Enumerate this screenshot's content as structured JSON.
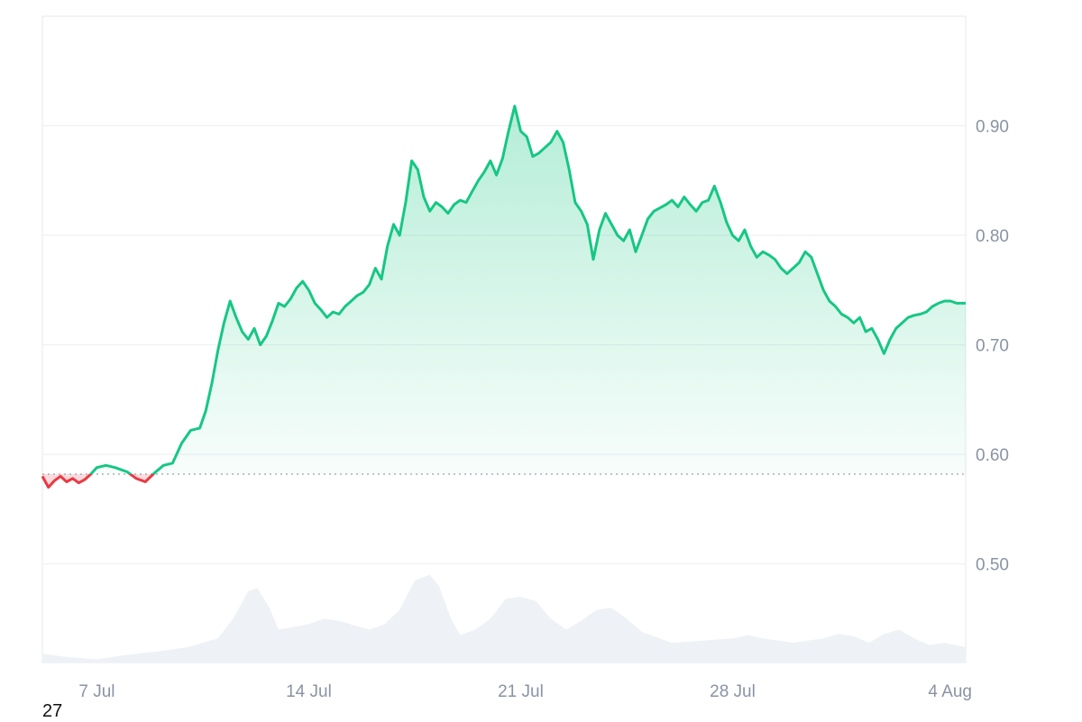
{
  "chart_data": {
    "type": "area",
    "title": "",
    "xlabel": "",
    "ylabel": "",
    "ylim": [
      0.41,
      1.0
    ],
    "y_ticks": [
      {
        "value": 0.9,
        "label": "0.90"
      },
      {
        "value": 0.8,
        "label": "0.80"
      },
      {
        "value": 0.7,
        "label": "0.70"
      },
      {
        "value": 0.6,
        "label": "0.60"
      },
      {
        "value": 0.5,
        "label": "0.50"
      }
    ],
    "x_ticks": [
      {
        "day": 7,
        "label": "7 Jul"
      },
      {
        "day": 14,
        "label": "14 Jul"
      },
      {
        "day": 21,
        "label": "21 Jul"
      },
      {
        "day": 28,
        "label": "28 Jul"
      },
      {
        "day": 35,
        "label": "4 Aug"
      }
    ],
    "x_range": [
      5.2,
      35.7
    ],
    "baseline": 0.582,
    "grid": true,
    "legend": "none",
    "colors": {
      "up": "#16c784",
      "down": "#ea3943",
      "volume": "#eef1f5"
    },
    "price": [
      [
        5.2,
        0.58
      ],
      [
        5.4,
        0.57
      ],
      [
        5.6,
        0.576
      ],
      [
        5.8,
        0.58
      ],
      [
        6.0,
        0.575
      ],
      [
        6.2,
        0.578
      ],
      [
        6.4,
        0.574
      ],
      [
        6.6,
        0.577
      ],
      [
        6.8,
        0.582
      ],
      [
        7.0,
        0.588
      ],
      [
        7.3,
        0.59
      ],
      [
        7.6,
        0.588
      ],
      [
        8.0,
        0.584
      ],
      [
        8.3,
        0.578
      ],
      [
        8.6,
        0.575
      ],
      [
        8.9,
        0.583
      ],
      [
        9.2,
        0.59
      ],
      [
        9.5,
        0.592
      ],
      [
        9.8,
        0.61
      ],
      [
        10.1,
        0.622
      ],
      [
        10.4,
        0.624
      ],
      [
        10.6,
        0.64
      ],
      [
        10.8,
        0.665
      ],
      [
        11.0,
        0.695
      ],
      [
        11.2,
        0.72
      ],
      [
        11.4,
        0.74
      ],
      [
        11.6,
        0.725
      ],
      [
        11.8,
        0.712
      ],
      [
        12.0,
        0.705
      ],
      [
        12.2,
        0.715
      ],
      [
        12.4,
        0.7
      ],
      [
        12.6,
        0.708
      ],
      [
        12.8,
        0.722
      ],
      [
        13.0,
        0.738
      ],
      [
        13.2,
        0.735
      ],
      [
        13.4,
        0.742
      ],
      [
        13.6,
        0.752
      ],
      [
        13.8,
        0.758
      ],
      [
        14.0,
        0.75
      ],
      [
        14.2,
        0.738
      ],
      [
        14.4,
        0.732
      ],
      [
        14.6,
        0.725
      ],
      [
        14.8,
        0.73
      ],
      [
        15.0,
        0.728
      ],
      [
        15.2,
        0.735
      ],
      [
        15.4,
        0.74
      ],
      [
        15.6,
        0.745
      ],
      [
        15.8,
        0.748
      ],
      [
        16.0,
        0.755
      ],
      [
        16.2,
        0.77
      ],
      [
        16.4,
        0.76
      ],
      [
        16.6,
        0.79
      ],
      [
        16.8,
        0.81
      ],
      [
        17.0,
        0.8
      ],
      [
        17.2,
        0.83
      ],
      [
        17.4,
        0.868
      ],
      [
        17.6,
        0.86
      ],
      [
        17.8,
        0.835
      ],
      [
        18.0,
        0.822
      ],
      [
        18.2,
        0.83
      ],
      [
        18.4,
        0.826
      ],
      [
        18.6,
        0.82
      ],
      [
        18.8,
        0.828
      ],
      [
        19.0,
        0.832
      ],
      [
        19.2,
        0.83
      ],
      [
        19.4,
        0.84
      ],
      [
        19.6,
        0.85
      ],
      [
        19.8,
        0.858
      ],
      [
        20.0,
        0.868
      ],
      [
        20.2,
        0.855
      ],
      [
        20.4,
        0.87
      ],
      [
        20.6,
        0.895
      ],
      [
        20.8,
        0.918
      ],
      [
        21.0,
        0.895
      ],
      [
        21.2,
        0.89
      ],
      [
        21.4,
        0.872
      ],
      [
        21.6,
        0.875
      ],
      [
        21.8,
        0.88
      ],
      [
        22.0,
        0.885
      ],
      [
        22.2,
        0.895
      ],
      [
        22.4,
        0.885
      ],
      [
        22.6,
        0.86
      ],
      [
        22.8,
        0.83
      ],
      [
        23.0,
        0.822
      ],
      [
        23.2,
        0.81
      ],
      [
        23.4,
        0.778
      ],
      [
        23.6,
        0.805
      ],
      [
        23.8,
        0.82
      ],
      [
        24.0,
        0.81
      ],
      [
        24.2,
        0.8
      ],
      [
        24.4,
        0.795
      ],
      [
        24.6,
        0.805
      ],
      [
        24.8,
        0.785
      ],
      [
        25.0,
        0.8
      ],
      [
        25.2,
        0.815
      ],
      [
        25.4,
        0.822
      ],
      [
        25.6,
        0.825
      ],
      [
        25.8,
        0.828
      ],
      [
        26.0,
        0.832
      ],
      [
        26.2,
        0.826
      ],
      [
        26.4,
        0.835
      ],
      [
        26.6,
        0.828
      ],
      [
        26.8,
        0.822
      ],
      [
        27.0,
        0.83
      ],
      [
        27.2,
        0.832
      ],
      [
        27.4,
        0.845
      ],
      [
        27.6,
        0.83
      ],
      [
        27.8,
        0.812
      ],
      [
        28.0,
        0.8
      ],
      [
        28.2,
        0.795
      ],
      [
        28.4,
        0.805
      ],
      [
        28.6,
        0.79
      ],
      [
        28.8,
        0.78
      ],
      [
        29.0,
        0.785
      ],
      [
        29.2,
        0.782
      ],
      [
        29.4,
        0.778
      ],
      [
        29.6,
        0.77
      ],
      [
        29.8,
        0.765
      ],
      [
        30.0,
        0.77
      ],
      [
        30.2,
        0.775
      ],
      [
        30.4,
        0.785
      ],
      [
        30.6,
        0.78
      ],
      [
        30.8,
        0.765
      ],
      [
        31.0,
        0.75
      ],
      [
        31.2,
        0.74
      ],
      [
        31.4,
        0.735
      ],
      [
        31.6,
        0.728
      ],
      [
        31.8,
        0.725
      ],
      [
        32.0,
        0.72
      ],
      [
        32.2,
        0.725
      ],
      [
        32.4,
        0.712
      ],
      [
        32.6,
        0.715
      ],
      [
        32.8,
        0.705
      ],
      [
        33.0,
        0.692
      ],
      [
        33.2,
        0.705
      ],
      [
        33.4,
        0.715
      ],
      [
        33.6,
        0.72
      ],
      [
        33.8,
        0.725
      ],
      [
        34.0,
        0.727
      ],
      [
        34.2,
        0.728
      ],
      [
        34.4,
        0.73
      ],
      [
        34.6,
        0.735
      ],
      [
        34.8,
        0.738
      ],
      [
        35.0,
        0.74
      ],
      [
        35.2,
        0.74
      ],
      [
        35.4,
        0.738
      ],
      [
        35.7,
        0.738
      ]
    ],
    "volume": [
      [
        5.2,
        0.418
      ],
      [
        6.0,
        0.415
      ],
      [
        7.0,
        0.413
      ],
      [
        8.0,
        0.417
      ],
      [
        9.0,
        0.42
      ],
      [
        10.0,
        0.424
      ],
      [
        11.0,
        0.432
      ],
      [
        11.5,
        0.45
      ],
      [
        12.0,
        0.475
      ],
      [
        12.3,
        0.478
      ],
      [
        12.7,
        0.46
      ],
      [
        13.0,
        0.44
      ],
      [
        14.0,
        0.445
      ],
      [
        14.5,
        0.45
      ],
      [
        15.0,
        0.448
      ],
      [
        16.0,
        0.44
      ],
      [
        16.5,
        0.445
      ],
      [
        17.0,
        0.458
      ],
      [
        17.5,
        0.485
      ],
      [
        18.0,
        0.49
      ],
      [
        18.3,
        0.48
      ],
      [
        18.7,
        0.45
      ],
      [
        19.0,
        0.435
      ],
      [
        19.5,
        0.44
      ],
      [
        20.0,
        0.45
      ],
      [
        20.5,
        0.468
      ],
      [
        21.0,
        0.47
      ],
      [
        21.5,
        0.466
      ],
      [
        22.0,
        0.45
      ],
      [
        22.5,
        0.44
      ],
      [
        23.0,
        0.448
      ],
      [
        23.5,
        0.458
      ],
      [
        24.0,
        0.46
      ],
      [
        24.5,
        0.45
      ],
      [
        25.0,
        0.438
      ],
      [
        26.0,
        0.428
      ],
      [
        27.0,
        0.43
      ],
      [
        28.0,
        0.432
      ],
      [
        28.5,
        0.435
      ],
      [
        29.0,
        0.432
      ],
      [
        30.0,
        0.428
      ],
      [
        31.0,
        0.432
      ],
      [
        31.5,
        0.436
      ],
      [
        32.0,
        0.434
      ],
      [
        32.5,
        0.428
      ],
      [
        33.0,
        0.436
      ],
      [
        33.5,
        0.44
      ],
      [
        34.0,
        0.432
      ],
      [
        34.5,
        0.426
      ],
      [
        35.0,
        0.428
      ],
      [
        35.7,
        0.424
      ]
    ],
    "footer_label": "27"
  }
}
